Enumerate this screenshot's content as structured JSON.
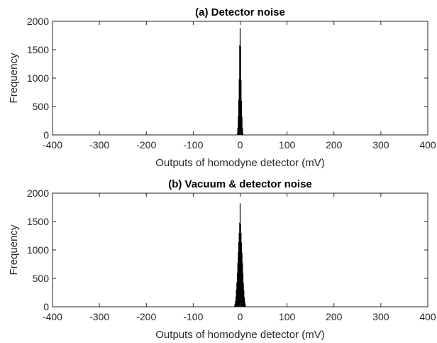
{
  "chart_data": [
    {
      "type": "bar",
      "title": "(a) Detector noise",
      "xlabel": "Outputs of homodyne detector (mV)",
      "ylabel": "Frequency",
      "xlim": [
        -400,
        400
      ],
      "ylim": [
        0,
        2000
      ],
      "xticks": [
        -400,
        -300,
        -200,
        -100,
        0,
        100,
        200,
        300,
        400
      ],
      "yticks": [
        0,
        500,
        1000,
        1500,
        2000
      ],
      "grid": false,
      "bar_color": "#000000",
      "x": [
        -6,
        -5,
        -4,
        -3,
        -2,
        -1,
        0,
        1,
        2,
        3,
        4,
        5,
        6
      ],
      "values": [
        30,
        130,
        330,
        620,
        980,
        1580,
        1880,
        1560,
        960,
        600,
        320,
        120,
        30
      ]
    },
    {
      "type": "bar",
      "title": "(b) Vacuum & detector noise",
      "xlabel": "Outputs of homodyne detector (mV)",
      "ylabel": "Frequency",
      "xlim": [
        -400,
        400
      ],
      "ylim": [
        0,
        2000
      ],
      "xticks": [
        -400,
        -300,
        -200,
        -100,
        0,
        100,
        200,
        300,
        400
      ],
      "yticks": [
        0,
        500,
        1000,
        1500,
        2000
      ],
      "grid": false,
      "bar_color": "#000000",
      "x": [
        -12,
        -11,
        -10,
        -9,
        -8,
        -7,
        -6,
        -5,
        -4,
        -3,
        -2,
        -1,
        0,
        1,
        2,
        3,
        4,
        5,
        6,
        7,
        8,
        9,
        10,
        11,
        12
      ],
      "values": [
        20,
        50,
        100,
        180,
        300,
        430,
        600,
        780,
        960,
        1140,
        1300,
        1480,
        1820,
        1460,
        1300,
        1130,
        950,
        770,
        590,
        420,
        290,
        170,
        90,
        45,
        15
      ]
    }
  ]
}
